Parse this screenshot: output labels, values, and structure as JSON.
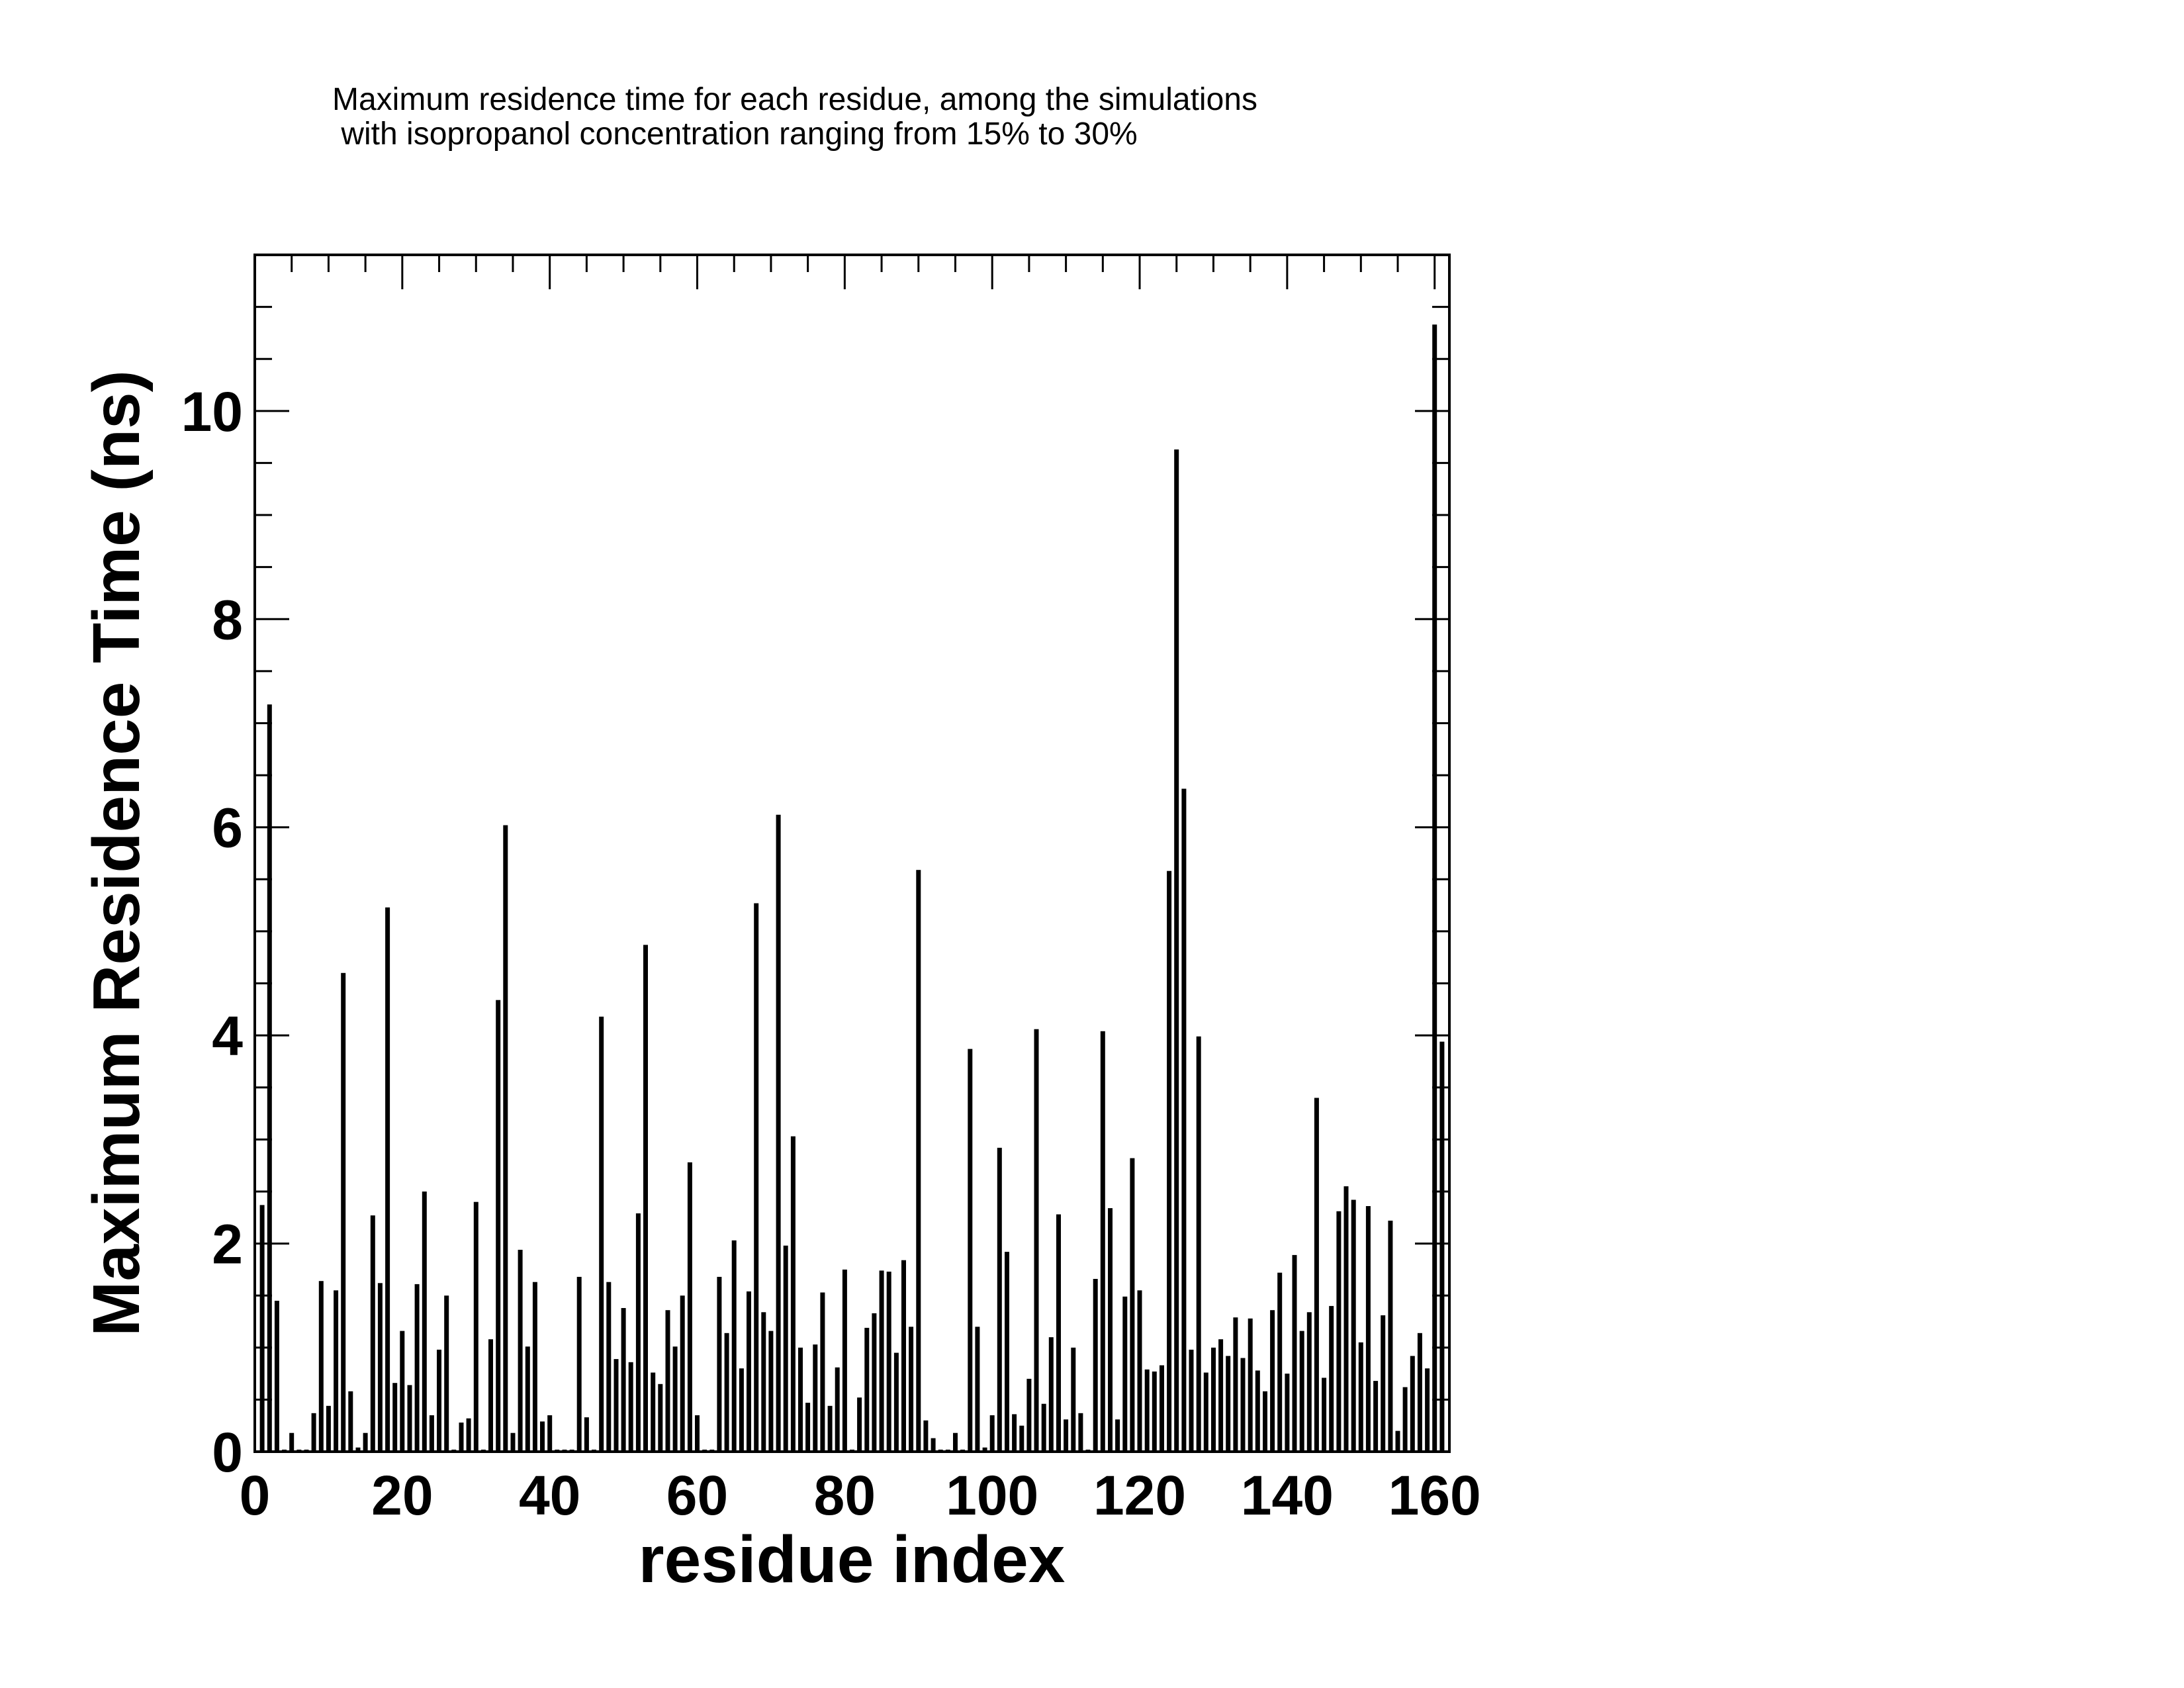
{
  "chart_data": {
    "type": "bar",
    "title_lines": [
      "Maximum residence time for each residue, among the simulations",
      " with isopropanol concentration ranging from 15% to 30%"
    ],
    "xlabel": "residue index",
    "ylabel": "Maximum Residence Time (ns)",
    "xlim": [
      0,
      162
    ],
    "ylim": [
      0,
      11.5
    ],
    "xticks": [
      0,
      20,
      40,
      60,
      80,
      100,
      120,
      140,
      160
    ],
    "yticks": [
      0,
      2,
      4,
      6,
      8,
      10
    ],
    "grid": false,
    "x": [
      1,
      2,
      3,
      4,
      5,
      6,
      7,
      8,
      9,
      10,
      11,
      12,
      13,
      14,
      15,
      16,
      17,
      18,
      19,
      20,
      21,
      22,
      23,
      24,
      25,
      26,
      27,
      28,
      29,
      30,
      31,
      32,
      33,
      34,
      35,
      36,
      37,
      38,
      39,
      40,
      41,
      42,
      43,
      44,
      45,
      46,
      47,
      48,
      49,
      50,
      51,
      52,
      53,
      54,
      55,
      56,
      57,
      58,
      59,
      60,
      61,
      62,
      63,
      64,
      65,
      66,
      67,
      68,
      69,
      70,
      71,
      72,
      73,
      74,
      75,
      76,
      77,
      78,
      79,
      80,
      81,
      82,
      83,
      84,
      85,
      86,
      87,
      88,
      89,
      90,
      91,
      92,
      93,
      94,
      95,
      96,
      97,
      98,
      99,
      100,
      101,
      102,
      103,
      104,
      105,
      106,
      107,
      108,
      109,
      110,
      111,
      112,
      113,
      114,
      115,
      116,
      117,
      118,
      119,
      120,
      121,
      122,
      123,
      124,
      125,
      126,
      127,
      128,
      129,
      130,
      131,
      132,
      133,
      134,
      135,
      136,
      137,
      138,
      139,
      140,
      141,
      142,
      143,
      144,
      145,
      146,
      147,
      148,
      149,
      150,
      151,
      152,
      153,
      154,
      155,
      156,
      157,
      158,
      159,
      160,
      161
    ],
    "values": [
      2.37,
      7.18,
      1.45,
      0.02,
      0.18,
      0.02,
      0.02,
      0.37,
      1.64,
      0.44,
      1.55,
      4.6,
      0.58,
      0.04,
      0.18,
      2.27,
      1.62,
      5.23,
      0.66,
      1.16,
      0.64,
      1.61,
      2.5,
      0.35,
      0.98,
      1.5,
      0.02,
      0.28,
      0.32,
      2.4,
      0.02,
      1.08,
      4.34,
      6.02,
      0.18,
      1.94,
      1.01,
      1.63,
      0.29,
      0.35,
      0.02,
      0.02,
      0.02,
      1.68,
      0.33,
      0.02,
      4.18,
      1.63,
      0.89,
      1.38,
      0.86,
      2.29,
      4.87,
      0.76,
      0.65,
      1.36,
      1.01,
      1.5,
      2.78,
      0.35,
      0.02,
      0.02,
      1.68,
      1.14,
      2.03,
      0.8,
      1.54,
      5.27,
      1.34,
      1.16,
      6.12,
      1.98,
      3.03,
      1.0,
      0.47,
      1.03,
      1.53,
      0.44,
      0.81,
      1.75,
      0.02,
      0.52,
      1.19,
      1.33,
      1.74,
      1.73,
      0.95,
      1.84,
      1.2,
      5.59,
      0.3,
      0.13,
      0.02,
      0.02,
      0.18,
      0.02,
      3.87,
      1.2,
      0.04,
      0.35,
      2.92,
      1.92,
      0.36,
      0.25,
      0.7,
      4.06,
      0.46,
      1.1,
      2.28,
      0.31,
      1.0,
      0.37,
      0.02,
      1.66,
      4.04,
      2.34,
      0.31,
      1.49,
      2.82,
      1.55,
      0.79,
      0.77,
      0.83,
      5.58,
      9.63,
      6.37,
      0.98,
      3.99,
      0.76,
      1.0,
      1.08,
      0.92,
      1.29,
      0.9,
      1.28,
      0.78,
      0.58,
      1.36,
      1.72,
      0.75,
      1.89,
      1.16,
      1.34,
      3.4,
      0.71,
      1.4,
      2.31,
      2.55,
      2.42,
      1.05,
      2.36,
      0.68,
      1.31,
      2.22,
      0.2,
      0.62,
      0.92,
      1.14,
      0.8,
      10.83,
      3.94
    ]
  }
}
